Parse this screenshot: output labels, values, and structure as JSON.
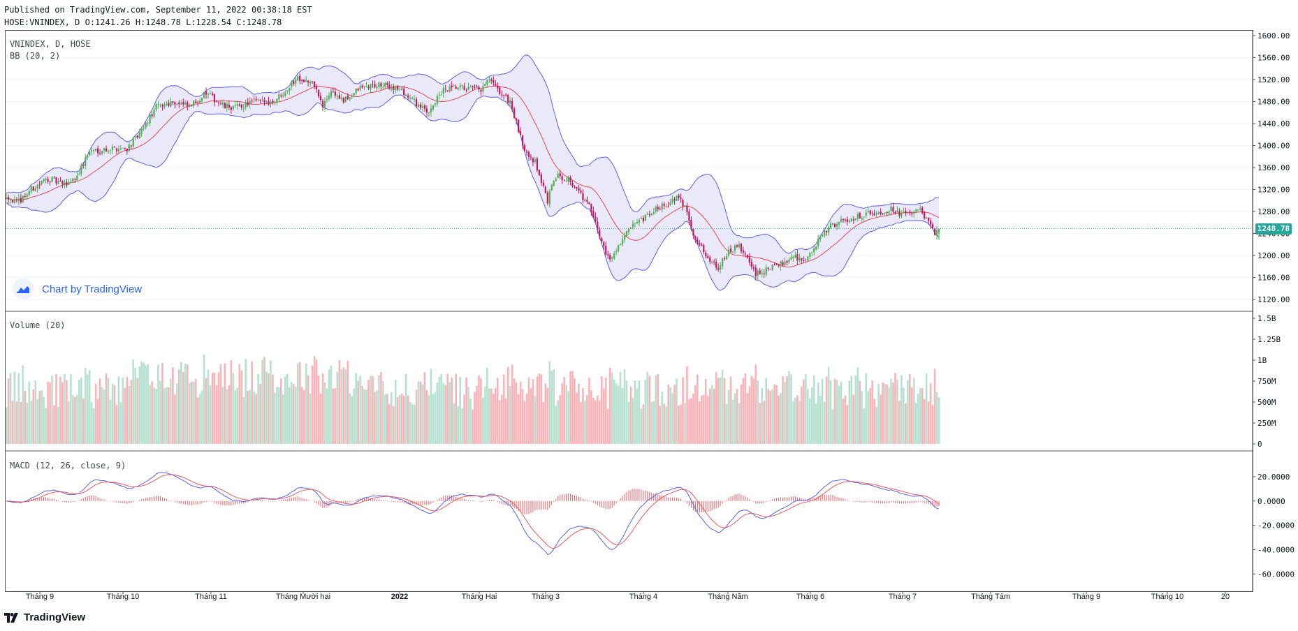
{
  "header": {
    "published": "Published on TradingView.com, September 11, 2022 00:38:18 EST",
    "ohlc": "HOSE:VNINDEX, D O:1241.26 H:1248.78 L:1228.54 C:1248.78"
  },
  "footer": {
    "brand": "TradingView"
  },
  "attribution": {
    "text": "Chart by TradingView"
  },
  "price_tag": "1248.78",
  "colors": {
    "up": "#26a69a",
    "down": "#ef5350",
    "up_candle": "#4caf50",
    "down_candle": "#c2185b",
    "bb_band": "#5c5cf0",
    "bb_fill": "#e1e1f7",
    "bb_basis": "#e5484d",
    "vol_up": "#b6e0cf",
    "vol_down": "#f8b4b8",
    "macd": "#5563f0",
    "signal": "#f0585b",
    "hist": "#f05a5f",
    "price_line": "#26a69a"
  },
  "chart_data": [
    {
      "type": "candlestick",
      "title": "VNINDEX, D, HOSE",
      "overlay_label": "BB (20, 2)",
      "y_ticks": [
        "1600.00",
        "1560.00",
        "1520.00",
        "1480.00",
        "1440.00",
        "1400.00",
        "1360.00",
        "1320.00",
        "1280.00",
        "1240.00",
        "1200.00",
        "1160.00",
        "1120.00"
      ],
      "ylim": [
        1110,
        1605
      ],
      "x_ticks": [
        "Tháng 9",
        "Tháng 10",
        "Tháng 11",
        "Tháng Mười hai",
        "2022",
        "Tháng Hai",
        "Tháng 3",
        "Tháng 4",
        "Tháng Năm",
        "Tháng 6",
        "Tháng 7",
        "Tháng Tám",
        "Tháng 9",
        "Tháng 10",
        "20"
      ],
      "last_close": 1248.78,
      "anchors": [
        [
          0,
          1310
        ],
        [
          5,
          1295
        ],
        [
          12,
          1320
        ],
        [
          20,
          1340
        ],
        [
          28,
          1328
        ],
        [
          34,
          1345
        ],
        [
          40,
          1390
        ],
        [
          52,
          1395
        ],
        [
          58,
          1395
        ],
        [
          64,
          1420
        ],
        [
          72,
          1470
        ],
        [
          80,
          1480
        ],
        [
          88,
          1470
        ],
        [
          96,
          1495
        ],
        [
          105,
          1470
        ],
        [
          112,
          1470
        ],
        [
          118,
          1480
        ],
        [
          128,
          1480
        ],
        [
          134,
          1500
        ],
        [
          140,
          1525
        ],
        [
          148,
          1510
        ],
        [
          152,
          1470
        ],
        [
          156,
          1500
        ],
        [
          162,
          1480
        ],
        [
          170,
          1505
        ],
        [
          178,
          1510
        ],
        [
          188,
          1505
        ],
        [
          196,
          1480
        ],
        [
          202,
          1460
        ],
        [
          210,
          1500
        ],
        [
          218,
          1505
        ],
        [
          228,
          1500
        ],
        [
          232,
          1520
        ],
        [
          236,
          1500
        ],
        [
          242,
          1480
        ],
        [
          248,
          1400
        ],
        [
          254,
          1370
        ],
        [
          260,
          1300
        ],
        [
          264,
          1345
        ],
        [
          270,
          1340
        ],
        [
          274,
          1320
        ],
        [
          280,
          1290
        ],
        [
          286,
          1225
        ],
        [
          290,
          1190
        ],
        [
          294,
          1220
        ],
        [
          300,
          1250
        ],
        [
          306,
          1265
        ],
        [
          314,
          1290
        ],
        [
          318,
          1295
        ],
        [
          322,
          1305
        ],
        [
          326,
          1290
        ],
        [
          330,
          1240
        ],
        [
          336,
          1200
        ],
        [
          342,
          1180
        ],
        [
          348,
          1210
        ],
        [
          352,
          1215
        ],
        [
          356,
          1195
        ],
        [
          360,
          1165
        ],
        [
          366,
          1175
        ],
        [
          372,
          1185
        ],
        [
          378,
          1200
        ],
        [
          384,
          1190
        ],
        [
          390,
          1225
        ],
        [
          396,
          1255
        ],
        [
          404,
          1265
        ],
        [
          412,
          1275
        ],
        [
          420,
          1280
        ],
        [
          426,
          1285
        ],
        [
          430,
          1275
        ],
        [
          434,
          1275
        ],
        [
          438,
          1285
        ],
        [
          442,
          1265
        ],
        [
          446,
          1240
        ],
        [
          448,
          1250
        ]
      ]
    },
    {
      "type": "bar",
      "title": "Volume (20)",
      "y_ticks": [
        "1.5B",
        "1.25B",
        "1B",
        "750M",
        "500M",
        "250M",
        "0"
      ],
      "ylim": [
        0,
        1500000000
      ]
    },
    {
      "type": "line",
      "title": "MACD (12, 26, close, 9)",
      "y_ticks": [
        "20.0000",
        "0.0000",
        "-20.0000",
        "-40.0000",
        "-60.0000"
      ],
      "ylim": [
        -65,
        28
      ]
    }
  ]
}
